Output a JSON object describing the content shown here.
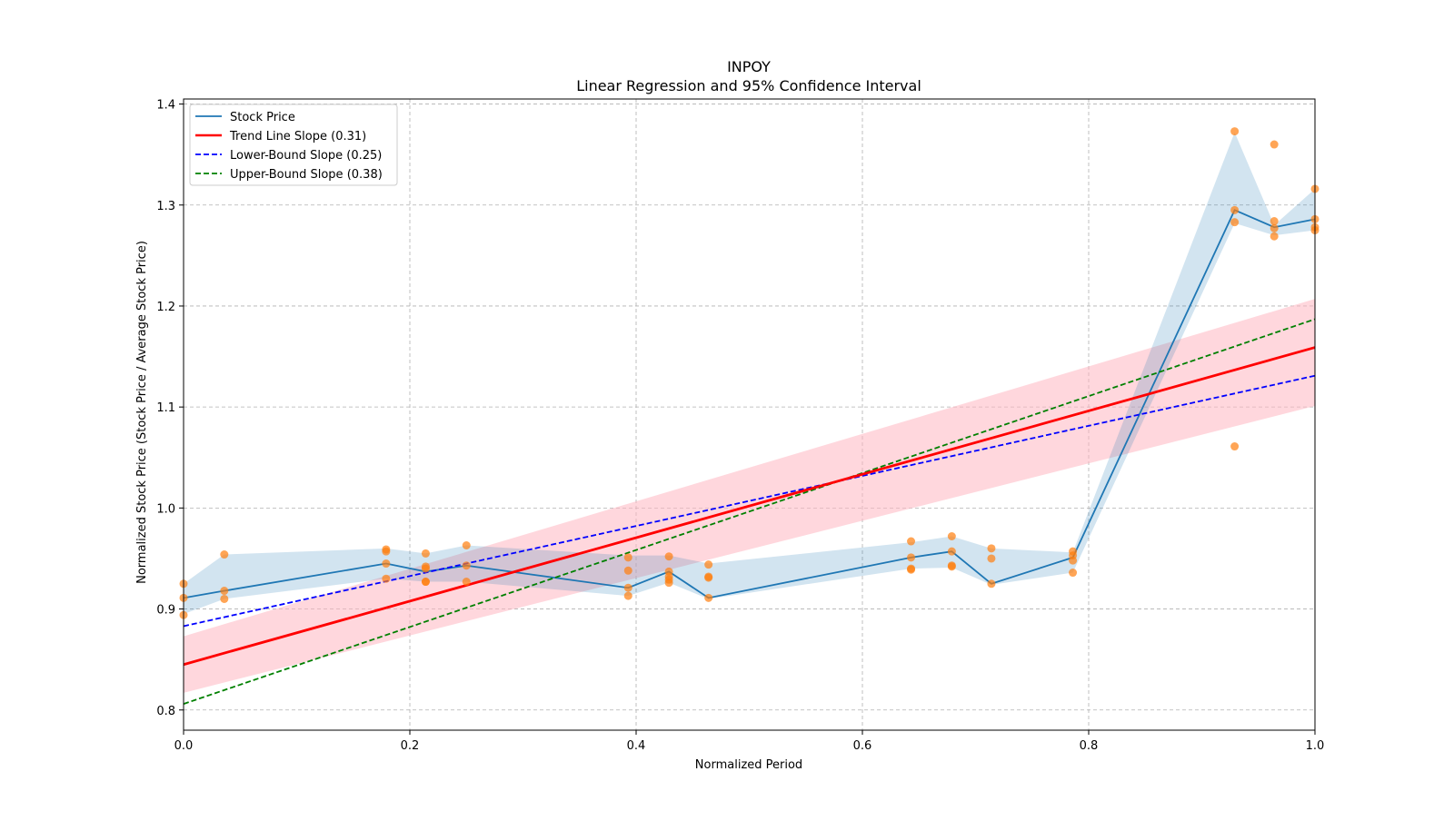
{
  "chart_data": {
    "type": "line",
    "title": "INPOY",
    "subtitle": "Linear Regression and 95% Confidence Interval",
    "xlabel": "Normalized Period",
    "ylabel": "Normalized Stock Price (Stock Price / Average Stock Price)",
    "xlim": [
      0.0,
      1.0
    ],
    "ylim": [
      0.78,
      1.405
    ],
    "xticks": [
      0.0,
      0.2,
      0.4,
      0.6,
      0.8,
      1.0
    ],
    "xtick_labels": [
      "0.0",
      "0.2",
      "0.4",
      "0.6",
      "0.8",
      "1.0"
    ],
    "yticks": [
      0.8,
      0.9,
      1.0,
      1.1,
      1.2,
      1.3,
      1.4
    ],
    "ytick_labels": [
      "0.8",
      "0.9",
      "1.0",
      "1.1",
      "1.2",
      "1.3",
      "1.4"
    ],
    "grid": true,
    "legend_position": "top-left",
    "colors": {
      "stock": "#1f77b4",
      "stock_band": "#1f77b4",
      "scatter": "#ff7f0e",
      "trend": "#ff0000",
      "trend_band": "#ffb6c1",
      "lower": "#0000ff",
      "upper": "#008000",
      "grid": "#b0b0b0"
    },
    "legend": [
      {
        "label": "Stock Price",
        "color": "#1f77b4",
        "style": "solid"
      },
      {
        "label": "Trend Line Slope (0.31)",
        "color": "#ff0000",
        "style": "solid"
      },
      {
        "label": "Lower-Bound Slope (0.25)",
        "color": "#0000ff",
        "style": "dashed"
      },
      {
        "label": "Upper-Bound Slope (0.38)",
        "color": "#008000",
        "style": "dashed"
      }
    ],
    "stock_line": {
      "x": [
        0.0,
        0.036,
        0.179,
        0.214,
        0.25,
        0.393,
        0.429,
        0.464,
        0.643,
        0.679,
        0.714,
        0.786,
        0.929,
        0.964,
        1.0
      ],
      "y": [
        0.911,
        0.918,
        0.945,
        0.937,
        0.943,
        0.921,
        0.937,
        0.911,
        0.951,
        0.957,
        0.925,
        0.951,
        1.295,
        1.278,
        1.286
      ],
      "band_lower": [
        0.895,
        0.91,
        0.93,
        0.927,
        0.927,
        0.913,
        0.926,
        0.91,
        0.94,
        0.941,
        0.924,
        0.936,
        1.282,
        1.27,
        1.275
      ],
      "band_upper": [
        0.925,
        0.954,
        0.96,
        0.955,
        0.963,
        0.953,
        0.953,
        0.945,
        0.966,
        0.972,
        0.96,
        0.956,
        1.372,
        1.28,
        1.316
      ]
    },
    "scatter": {
      "x": [
        0.0,
        0.0,
        0.0,
        0.036,
        0.036,
        0.036,
        0.179,
        0.179,
        0.179,
        0.179,
        0.214,
        0.214,
        0.214,
        0.214,
        0.214,
        0.25,
        0.25,
        0.25,
        0.393,
        0.393,
        0.393,
        0.393,
        0.429,
        0.429,
        0.429,
        0.429,
        0.429,
        0.464,
        0.464,
        0.464,
        0.464,
        0.643,
        0.643,
        0.643,
        0.643,
        0.679,
        0.679,
        0.679,
        0.679,
        0.714,
        0.714,
        0.714,
        0.786,
        0.786,
        0.786,
        0.786,
        0.929,
        0.929,
        0.929,
        0.929,
        0.964,
        0.964,
        0.964,
        0.964,
        1.0,
        1.0,
        1.0,
        1.0
      ],
      "y": [
        0.925,
        0.911,
        0.894,
        0.954,
        0.918,
        0.91,
        0.959,
        0.957,
        0.945,
        0.93,
        0.955,
        0.942,
        0.94,
        0.927,
        0.927,
        0.963,
        0.943,
        0.927,
        0.951,
        0.938,
        0.921,
        0.913,
        0.952,
        0.937,
        0.932,
        0.926,
        0.929,
        0.944,
        0.932,
        0.931,
        0.911,
        0.967,
        0.951,
        0.94,
        0.939,
        0.972,
        0.957,
        0.943,
        0.942,
        0.96,
        0.95,
        0.925,
        0.957,
        0.953,
        0.948,
        0.936,
        1.373,
        1.295,
        1.283,
        1.061,
        1.36,
        1.284,
        1.277,
        1.269,
        1.316,
        1.286,
        1.278,
        1.275
      ]
    },
    "trend_line": {
      "x": [
        0.0,
        1.0
      ],
      "y": [
        0.845,
        1.159
      ],
      "band_lower": [
        0.817,
        1.101
      ],
      "band_upper": [
        0.873,
        1.207
      ]
    },
    "lower_bound_line": {
      "x": [
        0.0,
        1.0
      ],
      "y": [
        0.883,
        1.131
      ]
    },
    "upper_bound_line": {
      "x": [
        0.0,
        1.0
      ],
      "y": [
        0.806,
        1.187
      ]
    }
  }
}
